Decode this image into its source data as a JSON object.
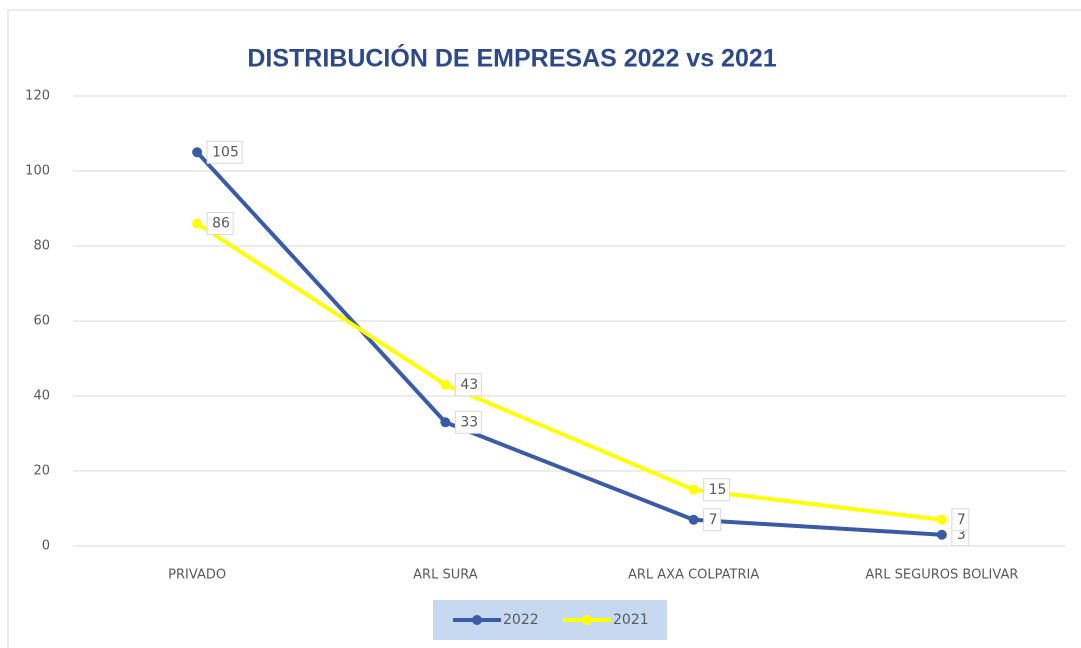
{
  "chart_data": {
    "type": "line",
    "title": "DISTRIBUCIÓN DE EMPRESAS 2022 vs 2021",
    "categories": [
      "PRIVADO",
      "ARL SURA",
      "ARL AXA COLPATRIA",
      "ARL SEGUROS BOLIVAR"
    ],
    "series": [
      {
        "name": "2022",
        "color": "#3a5ba6",
        "values": [
          105,
          33,
          7,
          3
        ]
      },
      {
        "name": "2021",
        "color": "#ffff00",
        "values": [
          86,
          43,
          15,
          7
        ]
      }
    ],
    "ylim": [
      0,
      120
    ],
    "yticks": [
      0,
      20,
      40,
      60,
      80,
      100,
      120
    ],
    "grid": true,
    "legend": "bottom"
  }
}
